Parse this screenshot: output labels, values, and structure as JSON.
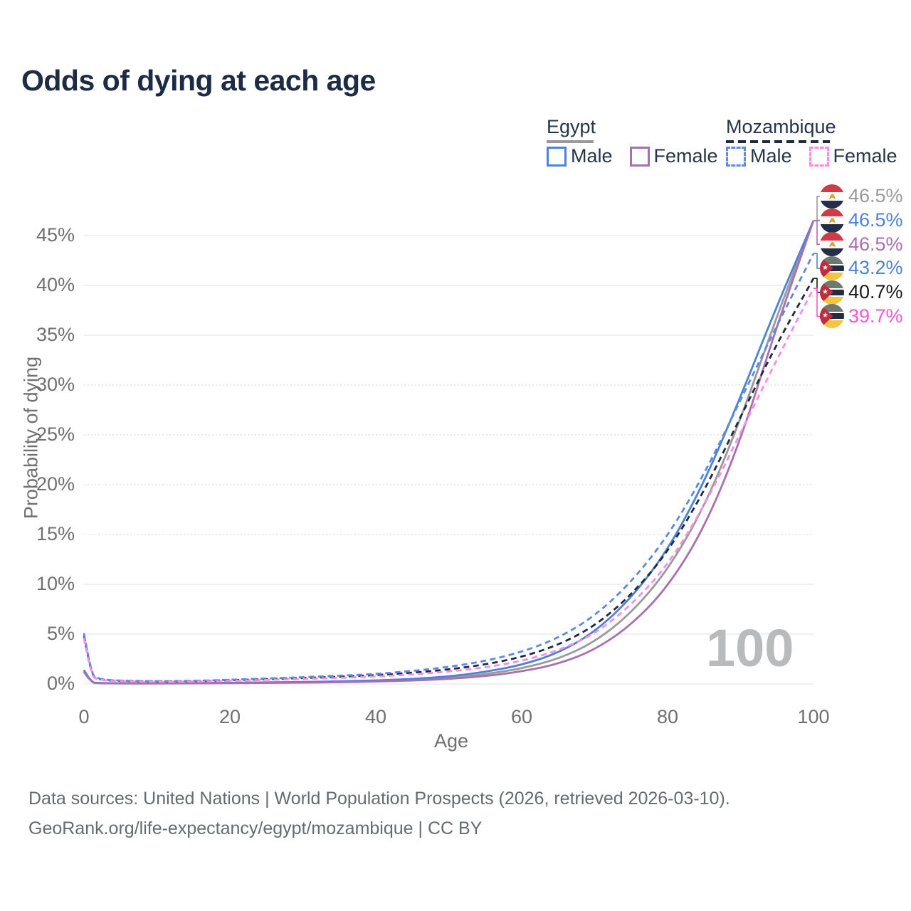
{
  "title": "Odds of dying at each age",
  "watermark": "100",
  "legend": {
    "groups": [
      {
        "label": "Egypt",
        "line_color": "#9a9a9a",
        "dashed": false,
        "items": [
          {
            "label": "Male",
            "color": "#4c83d8",
            "dashed": false
          },
          {
            "label": "Female",
            "color": "#a970ae",
            "dashed": false
          }
        ]
      },
      {
        "label": "Mozambique",
        "line_color": "#202b3c",
        "dashed": true,
        "items": [
          {
            "label": "Male",
            "color": "#5c8be0",
            "dashed": true
          },
          {
            "label": "Female",
            "color": "#fb8ce1",
            "dashed": true
          }
        ]
      }
    ]
  },
  "axes": {
    "x_title": "Age",
    "y_title": "Probability of dying",
    "x_tick_labels": [
      "0",
      "20",
      "40",
      "60",
      "80",
      "100"
    ],
    "y_tick_labels": [
      "0%",
      "5%",
      "10%",
      "15%",
      "20%",
      "25%",
      "30%",
      "35%",
      "40%",
      "45%"
    ]
  },
  "annotations": [
    {
      "flag": "egypt",
      "value": "46.5%",
      "color": "#9a9a9a"
    },
    {
      "flag": "egypt",
      "value": "46.5%",
      "color": "#4c83d8"
    },
    {
      "flag": "egypt",
      "value": "46.5%",
      "color": "#b06cb3"
    },
    {
      "flag": "mozambique",
      "value": "43.2%",
      "color": "#4c83d8"
    },
    {
      "flag": "mozambique",
      "value": "40.7%",
      "color": "#1c1c1c"
    },
    {
      "flag": "mozambique",
      "value": "39.7%",
      "color": "#f556d3"
    }
  ],
  "footer": {
    "line1": "Data sources: United Nations | World Population Prospects (2026, retrieved 2026-03-10).",
    "line2": "GeoRank.org/life-expectancy/egypt/mozambique | CC BY"
  },
  "chart_data": {
    "type": "line",
    "title": "Odds of dying at each age",
    "xlabel": "Age",
    "ylabel": "Probability of dying",
    "xlim": [
      0,
      100
    ],
    "ylim": [
      0,
      49.4
    ],
    "grid": "horizontal",
    "legend_position": "top-right",
    "x_ticks": [
      0,
      20,
      40,
      60,
      80,
      100
    ],
    "y_ticks": [
      0,
      5,
      10,
      15,
      20,
      25,
      30,
      35,
      40,
      45
    ],
    "dotted_gridlines": [
      15,
      20,
      25,
      30
    ],
    "ages": [
      0,
      1,
      2,
      3,
      5,
      10,
      15,
      20,
      25,
      30,
      35,
      40,
      45,
      50,
      55,
      60,
      65,
      70,
      75,
      80,
      85,
      90,
      95,
      100
    ],
    "series": [
      {
        "name": "Egypt",
        "country": "egypt",
        "sex": "all",
        "color": "#9a9a9a",
        "dashed": false,
        "end_label": "46.5%",
        "values": [
          1.3,
          0.14,
          0.09,
          0.07,
          0.06,
          0.06,
          0.08,
          0.1,
          0.13,
          0.17,
          0.22,
          0.29,
          0.42,
          0.62,
          0.97,
          1.55,
          2.5,
          4.2,
          7.1,
          11.4,
          17.7,
          26.5,
          37.0,
          46.5
        ]
      },
      {
        "name": "Egypt Male",
        "country": "egypt",
        "sex": "male",
        "color": "#4c83d8",
        "dashed": false,
        "end_label": "46.5%",
        "values": [
          1.4,
          0.15,
          0.1,
          0.08,
          0.07,
          0.07,
          0.09,
          0.12,
          0.16,
          0.2,
          0.26,
          0.35,
          0.5,
          0.75,
          1.2,
          1.9,
          3.1,
          5.2,
          8.6,
          13.4,
          20.2,
          28.8,
          38.0,
          46.5
        ]
      },
      {
        "name": "Egypt Female",
        "country": "egypt",
        "sex": "female",
        "color": "#a970ae",
        "dashed": false,
        "end_label": "46.5%",
        "values": [
          1.2,
          0.12,
          0.08,
          0.07,
          0.05,
          0.05,
          0.06,
          0.08,
          0.11,
          0.14,
          0.18,
          0.24,
          0.34,
          0.5,
          0.78,
          1.25,
          2.0,
          3.4,
          5.9,
          9.7,
          15.6,
          24.4,
          36.0,
          46.5
        ]
      },
      {
        "name": "Mozambique Male",
        "country": "mozambique",
        "sex": "male",
        "color": "#5c8be0",
        "dashed": true,
        "end_label": "43.2%",
        "values": [
          5.1,
          0.85,
          0.55,
          0.42,
          0.33,
          0.27,
          0.31,
          0.42,
          0.55,
          0.68,
          0.83,
          1.0,
          1.3,
          1.7,
          2.3,
          3.2,
          4.6,
          6.8,
          10.2,
          14.8,
          21.0,
          28.5,
          36.0,
          43.2
        ]
      },
      {
        "name": "Mozambique",
        "country": "mozambique",
        "sex": "all",
        "color": "#202b3c",
        "dashed": true,
        "end_label": "40.7%",
        "values": [
          4.85,
          0.78,
          0.5,
          0.38,
          0.3,
          0.24,
          0.28,
          0.37,
          0.48,
          0.59,
          0.72,
          0.88,
          1.12,
          1.45,
          1.95,
          2.7,
          3.9,
          5.8,
          8.9,
          13.2,
          19.3,
          26.8,
          34.2,
          40.7
        ]
      },
      {
        "name": "Mozambique Female",
        "country": "mozambique",
        "sex": "female",
        "color": "#f98ce5",
        "dashed": true,
        "end_label": "39.7%",
        "values": [
          4.6,
          0.7,
          0.46,
          0.35,
          0.27,
          0.21,
          0.24,
          0.31,
          0.41,
          0.5,
          0.61,
          0.75,
          0.95,
          1.25,
          1.65,
          2.3,
          3.35,
          5.0,
          7.9,
          11.9,
          17.8,
          25.2,
          32.6,
          39.7
        ]
      }
    ]
  }
}
